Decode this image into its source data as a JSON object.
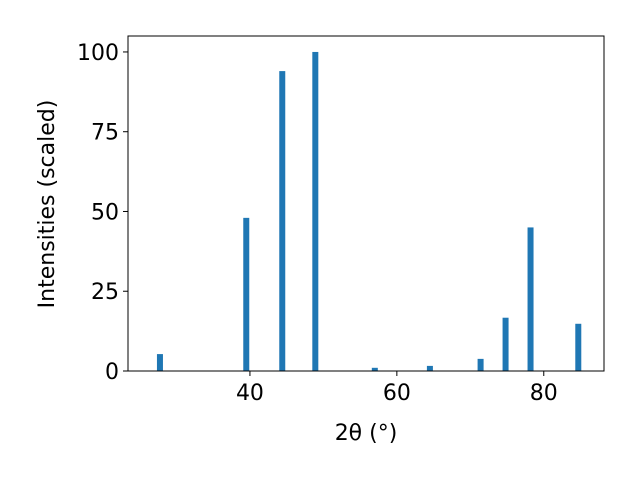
{
  "chart_data": {
    "type": "bar",
    "xlabel": "2θ (°)",
    "ylabel": "Intensities (scaled)",
    "x": [
      27.75,
      39.5,
      44.4,
      48.9,
      57.0,
      64.5,
      71.4,
      74.8,
      78.2,
      84.7
    ],
    "values": [
      5.3,
      48,
      94,
      100,
      1.0,
      1.6,
      3.8,
      16.7,
      45,
      14.8
    ],
    "color": "#1f77b4",
    "xlim": [
      23.4,
      88.2
    ],
    "xticks": [
      40,
      60,
      80
    ],
    "ylim": [
      0,
      105
    ],
    "yticks": [
      0,
      25,
      50,
      75,
      100
    ]
  }
}
